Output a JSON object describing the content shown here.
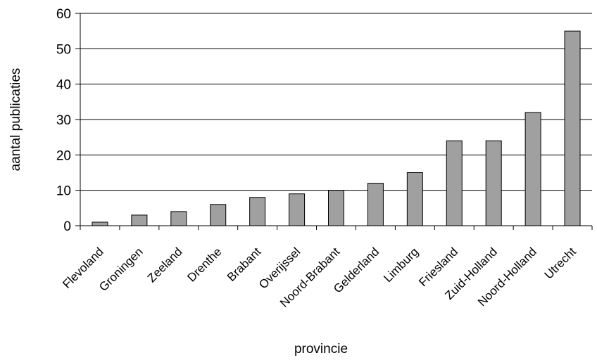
{
  "chart_data": {
    "type": "bar",
    "title": "",
    "xlabel": "provincie",
    "ylabel": "aantal publicaties",
    "ylim": [
      0,
      60
    ],
    "yticks": [
      0,
      10,
      20,
      30,
      40,
      50,
      60
    ],
    "grid": true,
    "categories": [
      "Flevoland",
      "Groningen",
      "Zeeland",
      "Drenthe",
      "Brabant",
      "Overijssel",
      "Noord-Brabant",
      "Gelderland",
      "Limburg",
      "Friesland",
      "Zuid-Holland",
      "Noord-Holland",
      "Utrecht"
    ],
    "values": [
      1,
      3,
      4,
      6,
      8,
      9,
      10,
      12,
      15,
      24,
      24,
      32,
      55
    ],
    "colors": {
      "bar_fill": "#a0a0a0",
      "bar_stroke": "#000000",
      "grid": "#000000",
      "axis": "#000000"
    }
  }
}
